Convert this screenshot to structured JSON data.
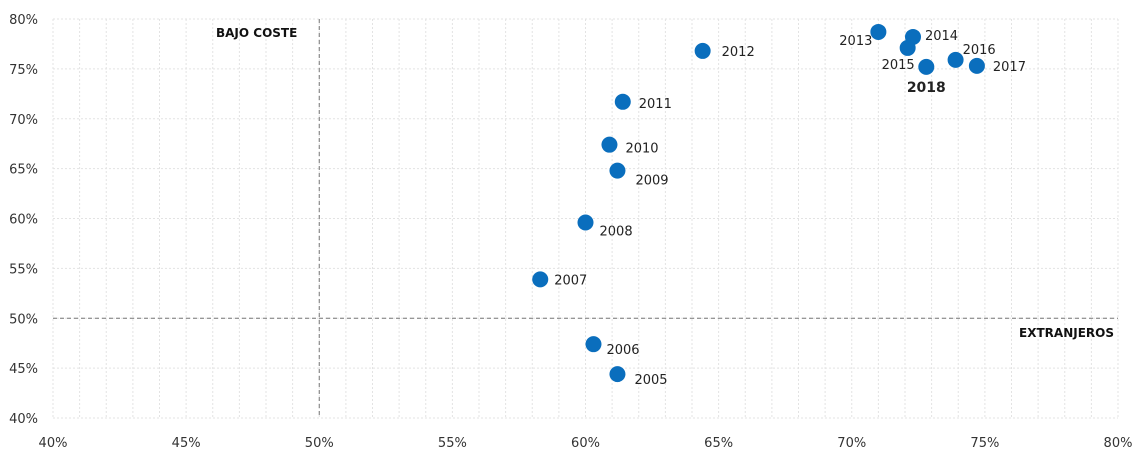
{
  "chart_data": {
    "type": "scatter",
    "title": "",
    "xlabel": "",
    "ylabel": "",
    "xlim": [
      40,
      80
    ],
    "ylim": [
      40,
      80
    ],
    "x_ticks": [
      40,
      45,
      50,
      55,
      60,
      65,
      70,
      75,
      80
    ],
    "y_ticks": [
      40,
      45,
      50,
      55,
      60,
      65,
      70,
      75,
      80
    ],
    "x_tick_labels": [
      "40%",
      "45%",
      "50%",
      "55%",
      "60%",
      "65%",
      "70%",
      "75%",
      "80%"
    ],
    "y_tick_labels": [
      "40%",
      "45%",
      "50%",
      "55%",
      "60%",
      "65%",
      "70%",
      "75%",
      "80%"
    ],
    "grid": true,
    "reference_lines": {
      "x": 50,
      "y": 50
    },
    "quadrant_labels": {
      "top_left": "BAJO COSTE",
      "bottom_right": "EXTRANJEROS"
    },
    "point_color": "#0a6ebd",
    "points": [
      {
        "label": "2005",
        "x": 61.2,
        "y": 44.4
      },
      {
        "label": "2006",
        "x": 60.3,
        "y": 47.4
      },
      {
        "label": "2007",
        "x": 58.3,
        "y": 53.9
      },
      {
        "label": "2008",
        "x": 60.0,
        "y": 59.6
      },
      {
        "label": "2009",
        "x": 61.2,
        "y": 64.8
      },
      {
        "label": "2010",
        "x": 60.9,
        "y": 67.4
      },
      {
        "label": "2011",
        "x": 61.4,
        "y": 71.7
      },
      {
        "label": "2012",
        "x": 64.4,
        "y": 76.8
      },
      {
        "label": "2013",
        "x": 71.0,
        "y": 78.7
      },
      {
        "label": "2014",
        "x": 72.3,
        "y": 78.2
      },
      {
        "label": "2015",
        "x": 72.1,
        "y": 77.1
      },
      {
        "label": "2016",
        "x": 73.9,
        "y": 75.9
      },
      {
        "label": "2017",
        "x": 74.7,
        "y": 75.3
      },
      {
        "label": "2018",
        "x": 72.8,
        "y": 75.2,
        "highlight": true
      }
    ]
  }
}
